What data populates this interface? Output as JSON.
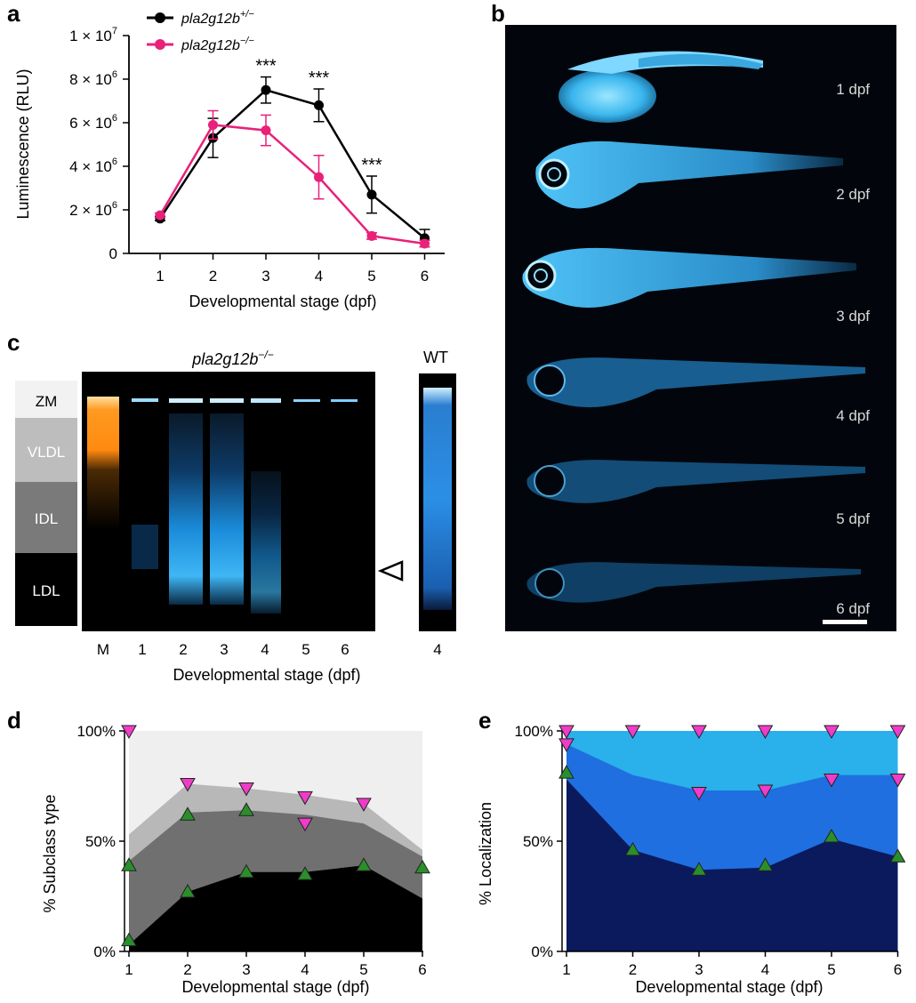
{
  "figure": {
    "panels": [
      "a",
      "b",
      "c",
      "d",
      "e"
    ]
  },
  "panel_a": {
    "letter": "a",
    "ylabel": "Luminescence (RLU)",
    "xlabel": "Developmental stage (dpf)",
    "ytick_labels": [
      "0",
      "2 × 10",
      "4 × 10",
      "6 × 10",
      "8 × 10",
      "1 × 10"
    ],
    "ytick_exponents": [
      "",
      "6",
      "6",
      "6",
      "6",
      "7"
    ],
    "xtick_labels": [
      "1",
      "2",
      "3",
      "4",
      "5",
      "6"
    ],
    "significance": "***",
    "legend": [
      {
        "name": "pla2g12b",
        "sup": "+/−",
        "color": "#000000"
      },
      {
        "name": "pla2g12b",
        "sup": "−/−",
        "color": "#e8217a"
      }
    ]
  },
  "panel_b": {
    "letter": "b",
    "stage_labels": [
      "1 dpf",
      "2 dpf",
      "3 dpf",
      "4 dpf",
      "5 dpf",
      "6 dpf"
    ],
    "fish_color": "#38b8f0",
    "background": "#02060c"
  },
  "panel_c": {
    "letter": "c",
    "title": "pla2g12b",
    "title_sup": "−/−",
    "wt_label": "WT",
    "wt_lane": "4",
    "classes": [
      "ZM",
      "VLDL",
      "IDL",
      "LDL"
    ],
    "lanes": [
      "M",
      "1",
      "2",
      "3",
      "4",
      "5",
      "6"
    ],
    "xlabel": "Developmental stage (dpf)"
  },
  "panel_d": {
    "letter": "d",
    "ylabel": "% Subclass type",
    "xlabel": "Developmental stage (dpf)",
    "ytick_labels": [
      "0%",
      "50%",
      "100%"
    ],
    "xtick_labels": [
      "1",
      "2",
      "3",
      "4",
      "5",
      "6"
    ]
  },
  "panel_e": {
    "letter": "e",
    "ylabel": "% Localization",
    "xlabel": "Developmental stage (dpf)",
    "ytick_labels": [
      "0%",
      "50%",
      "100%"
    ],
    "xtick_labels": [
      "1",
      "2",
      "3",
      "4",
      "5",
      "6"
    ]
  },
  "chart_data": [
    {
      "panel": "a",
      "type": "line",
      "x": [
        1,
        2,
        3,
        4,
        5,
        6
      ],
      "ylim": [
        0,
        10000000
      ],
      "series": [
        {
          "name": "pla2g12b+/−",
          "color": "#000000",
          "values": [
            1600000,
            5300000,
            7500000,
            6800000,
            2700000,
            700000
          ],
          "errors": [
            100000,
            900000,
            600000,
            750000,
            850000,
            400000
          ]
        },
        {
          "name": "pla2g12b−/−",
          "color": "#e8217a",
          "values": [
            1750000,
            5900000,
            5650000,
            3500000,
            800000,
            450000
          ],
          "errors": [
            100000,
            650000,
            700000,
            1000000,
            150000,
            150000
          ]
        }
      ],
      "significant_x": [
        3,
        4,
        5
      ]
    },
    {
      "panel": "d",
      "type": "area",
      "x": [
        1,
        2,
        3,
        4,
        5,
        6
      ],
      "ylim": [
        0,
        100
      ],
      "grid": false,
      "layers": [
        {
          "color": "#000000",
          "values": [
            3,
            27,
            36,
            36,
            39,
            24
          ]
        },
        {
          "color": "#707070",
          "values": [
            41,
            63,
            64,
            62,
            58,
            43
          ]
        },
        {
          "color": "#b8b8b8",
          "values": [
            53,
            76,
            74,
            71,
            67,
            46
          ]
        },
        {
          "color": "#efefef",
          "values": [
            100,
            100,
            100,
            100,
            100,
            100
          ]
        }
      ],
      "markers": [
        {
          "shape": "triangle-up",
          "color": "#2a8f2a",
          "x": [
            1,
            1,
            2,
            2,
            3,
            3,
            4,
            5,
            6
          ],
          "y": [
            5,
            39,
            27,
            62,
            36,
            64,
            35,
            39,
            38
          ]
        },
        {
          "shape": "triangle-down",
          "color": "#f03cc8",
          "x": [
            1,
            2,
            3,
            4,
            4,
            5
          ],
          "y": [
            100,
            76,
            74,
            70,
            58,
            67
          ]
        }
      ]
    },
    {
      "panel": "e",
      "type": "area",
      "x": [
        1,
        2,
        3,
        4,
        5,
        6
      ],
      "ylim": [
        0,
        100
      ],
      "grid": false,
      "layers": [
        {
          "color": "#0a1a5c",
          "values": [
            78,
            46,
            37,
            38,
            51,
            43
          ]
        },
        {
          "color": "#1f6fe0",
          "values": [
            94,
            80,
            73,
            73,
            80,
            80
          ]
        },
        {
          "color": "#2ab0ea",
          "values": [
            100,
            100,
            100,
            100,
            100,
            100
          ]
        }
      ],
      "markers": [
        {
          "shape": "triangle-up",
          "color": "#2a8f2a",
          "x": [
            1,
            2,
            3,
            4,
            5,
            6
          ],
          "y": [
            81,
            46,
            37,
            39,
            52,
            43
          ]
        },
        {
          "shape": "triangle-down",
          "color": "#f03cc8",
          "x": [
            1,
            1,
            2,
            3,
            4,
            5,
            6,
            3,
            4,
            5,
            6
          ],
          "y": [
            100,
            94,
            100,
            100,
            100,
            100,
            100,
            72,
            73,
            78,
            78
          ]
        }
      ]
    }
  ]
}
